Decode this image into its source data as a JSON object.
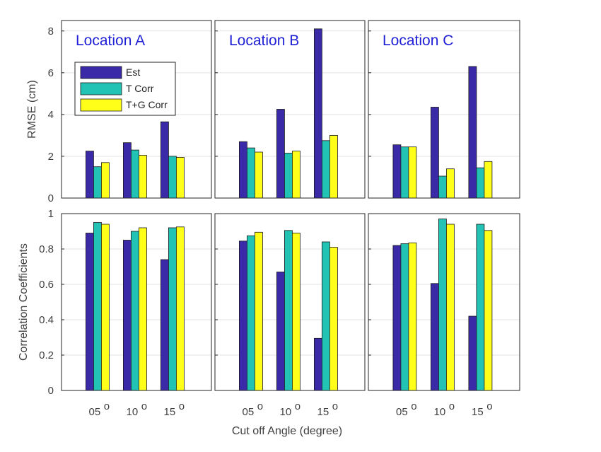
{
  "chart_data": {
    "type": "bar",
    "xlabel": "Cut off Angle (degree)",
    "categories": [
      "05",
      "10",
      "15"
    ],
    "category_superscript": "o",
    "legend": {
      "placement": "upper-left of first panel",
      "entries": [
        "Est",
        "T Corr",
        "T+G Corr"
      ]
    },
    "series_colors": [
      "#3a2aa8",
      "#22c2b4",
      "#ffff1a"
    ],
    "rows": [
      {
        "ylabel": "RMSE (cm)",
        "ylim": [
          0,
          8.5
        ],
        "yticks": [
          0,
          2,
          4,
          6,
          8
        ],
        "ytick_labels": [
          "0",
          "2",
          "4",
          "6",
          "8"
        ]
      },
      {
        "ylabel": "Correlation Coefficients",
        "ylim": [
          0,
          1
        ],
        "yticks": [
          0,
          0.2,
          0.4,
          0.6,
          0.8,
          1
        ],
        "ytick_labels": [
          "0",
          "0.2",
          "0.4",
          "0.6",
          "0.8",
          "1"
        ]
      }
    ],
    "panels": [
      {
        "title": "Location A",
        "rmse": [
          [
            2.25,
            1.5,
            1.7
          ],
          [
            2.65,
            2.3,
            2.05
          ],
          [
            3.65,
            2.0,
            1.95
          ]
        ],
        "correlation": [
          [
            0.89,
            0.95,
            0.94
          ],
          [
            0.85,
            0.9,
            0.92
          ],
          [
            0.74,
            0.92,
            0.925
          ]
        ]
      },
      {
        "title": "Location B",
        "rmse": [
          [
            2.7,
            2.4,
            2.2
          ],
          [
            4.25,
            2.15,
            2.25
          ],
          [
            8.1,
            2.75,
            3.0
          ]
        ],
        "correlation": [
          [
            0.845,
            0.875,
            0.895
          ],
          [
            0.67,
            0.905,
            0.89
          ],
          [
            0.295,
            0.84,
            0.81
          ]
        ]
      },
      {
        "title": "Location C",
        "rmse": [
          [
            2.55,
            2.45,
            2.45
          ],
          [
            4.35,
            1.05,
            1.4
          ],
          [
            6.3,
            1.45,
            1.75
          ]
        ],
        "correlation": [
          [
            0.82,
            0.83,
            0.835
          ],
          [
            0.605,
            0.97,
            0.94
          ],
          [
            0.42,
            0.94,
            0.905
          ]
        ]
      }
    ]
  }
}
